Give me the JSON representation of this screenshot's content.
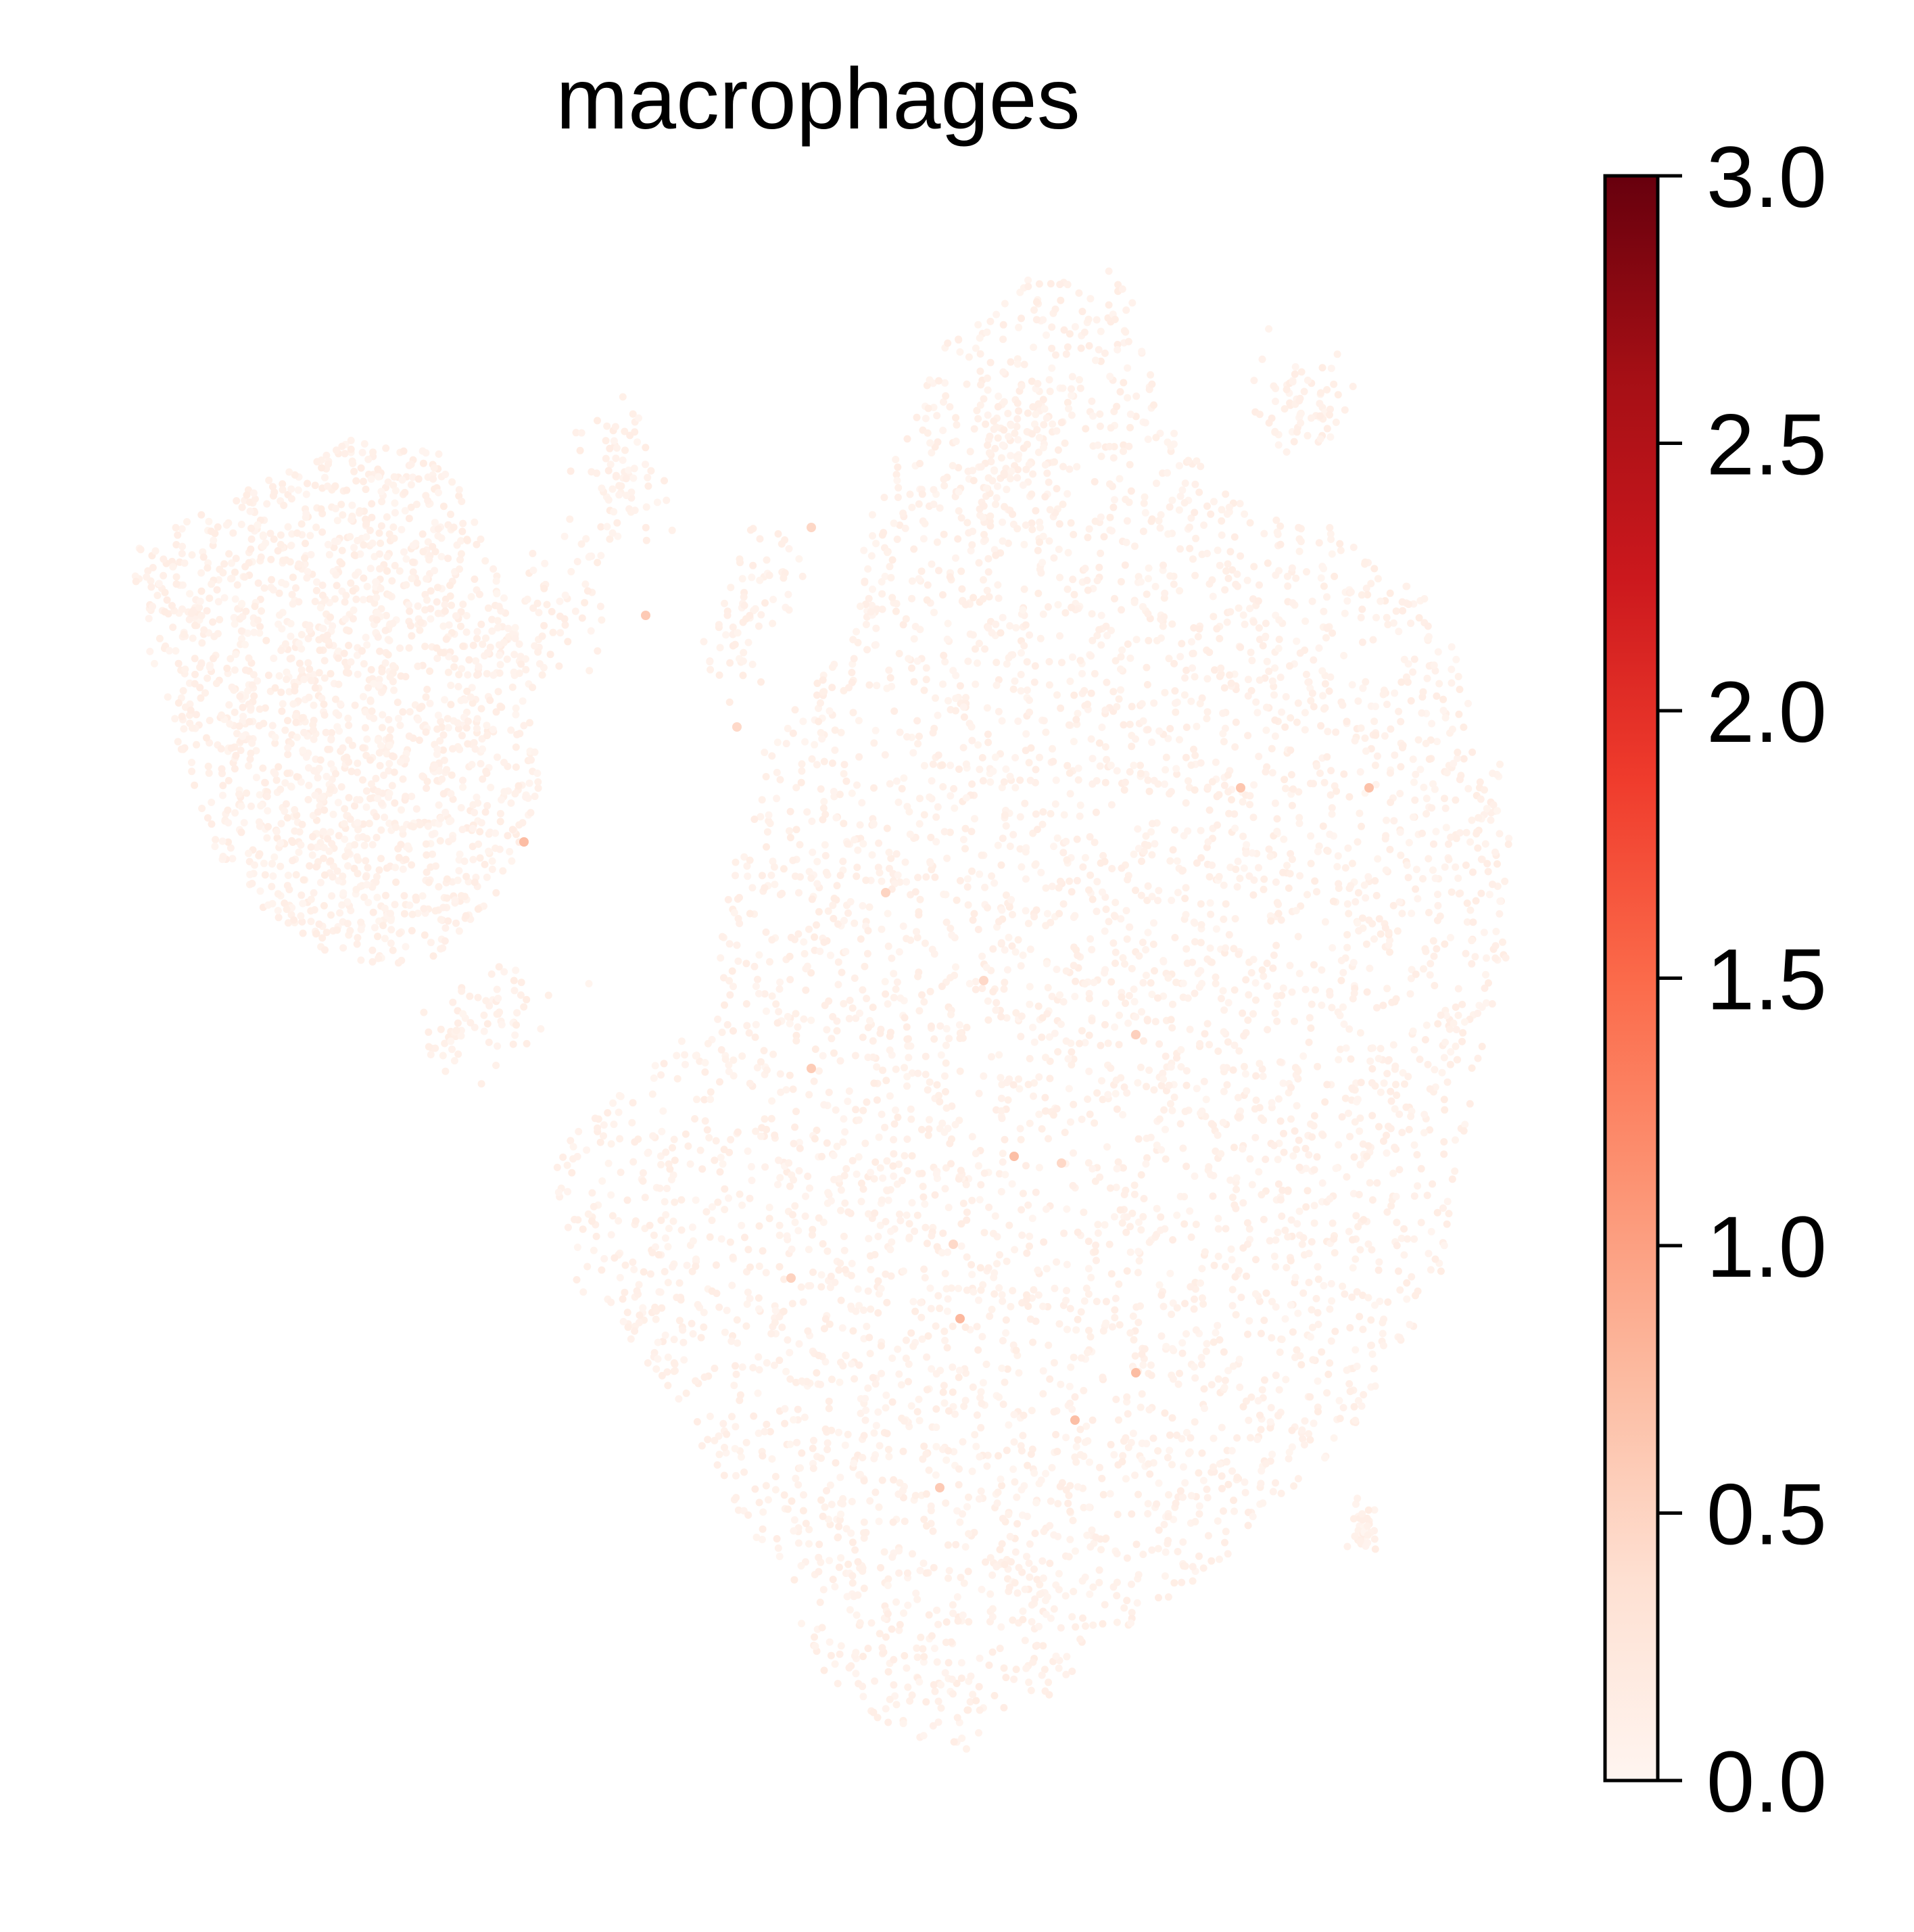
{
  "chart_data": {
    "type": "scatter",
    "title": "macrophages",
    "xlabel": "",
    "ylabel": "",
    "axes_visible": false,
    "grid": false,
    "point_color_by": "expression score",
    "colorbar": {
      "colormap": "Reds",
      "range": [
        0.0,
        3.0
      ],
      "ticks": [
        0.0,
        0.5,
        1.0,
        1.5,
        2.0,
        2.5,
        3.0
      ],
      "tick_labels": [
        "0.0",
        "0.5",
        "1.0",
        "1.5",
        "2.0",
        "2.5",
        "3.0"
      ],
      "placement": "right"
    },
    "colormap_stops": [
      "#fff5f0",
      "#fee0d2",
      "#fcbba1",
      "#fc9272",
      "#fb6a4a",
      "#ef3b2c",
      "#cb181d",
      "#a50f15",
      "#67000d"
    ],
    "background_value_range": [
      0.0,
      0.15
    ],
    "highlighted_points_value": 0.6
  }
}
